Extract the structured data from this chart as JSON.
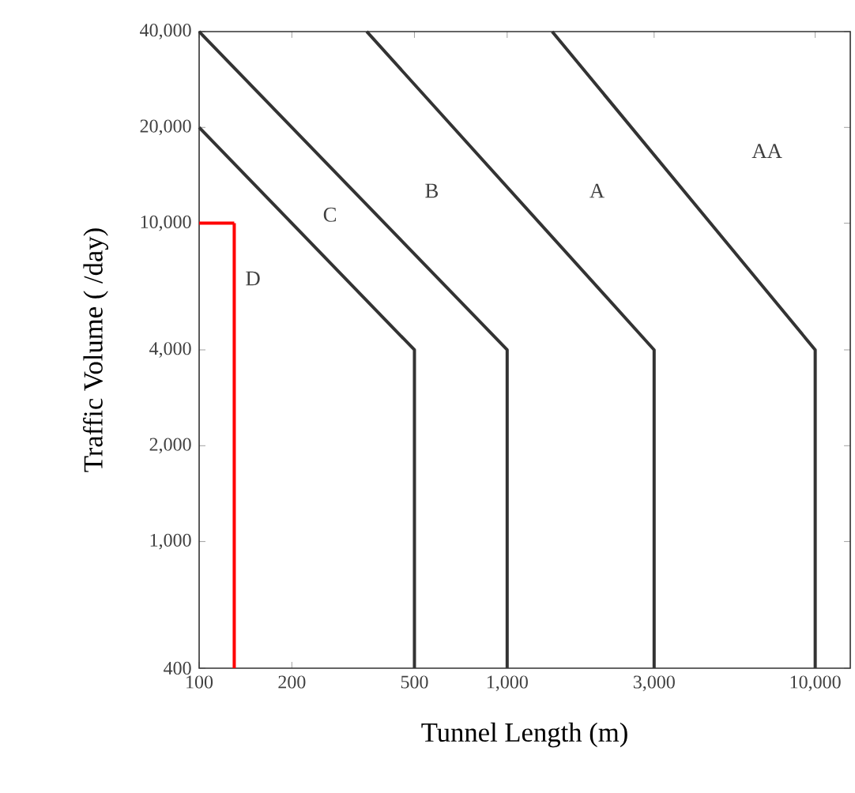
{
  "chart_data": {
    "type": "line",
    "xlabel": "Tunnel Length (m)",
    "ylabel": "Traffic Volume ( /day)",
    "log": "xy",
    "marker": "none",
    "line_style": "solid",
    "grid": false,
    "xlim": [
      100,
      13000
    ],
    "ylim": [
      400,
      40000
    ],
    "xticks": [
      100,
      200,
      500,
      {
        "value": 1000,
        "label": "1,000"
      },
      {
        "value": 3000,
        "label": "3,000"
      },
      {
        "value": 10000,
        "label": "10,000"
      }
    ],
    "yticks": [
      400,
      {
        "value": 1000,
        "label": "1,000"
      },
      {
        "value": 2000,
        "label": "2,000"
      },
      {
        "value": 4000,
        "label": "4,000"
      },
      {
        "value": 10000,
        "label": "10,000"
      },
      {
        "value": 20000,
        "label": "20,000"
      },
      {
        "value": 40000,
        "label": "40,000"
      }
    ],
    "series": [
      {
        "color": "#333333",
        "x": [
          100,
          500,
          500
        ],
        "values": [
          20000,
          4000,
          400
        ]
      },
      {
        "color": "#333333",
        "x": [
          100,
          1000,
          1000
        ],
        "values": [
          40000,
          4000,
          400
        ]
      },
      {
        "color": "#333333",
        "x": [
          350,
          3000,
          3000
        ],
        "values": [
          40000,
          4000,
          400
        ]
      },
      {
        "color": "#333333",
        "x": [
          1400,
          10000,
          10000
        ],
        "values": [
          40000,
          4000,
          400
        ]
      },
      {
        "color": "#ff0000",
        "x": [
          130,
          130
        ],
        "values": [
          400,
          10000
        ]
      },
      {
        "color": "#ff0000",
        "x": [
          100,
          130
        ],
        "values": [
          10000,
          10000
        ]
      }
    ],
    "annotations": [
      "AA",
      "A",
      "B",
      "C",
      "D"
    ]
  }
}
